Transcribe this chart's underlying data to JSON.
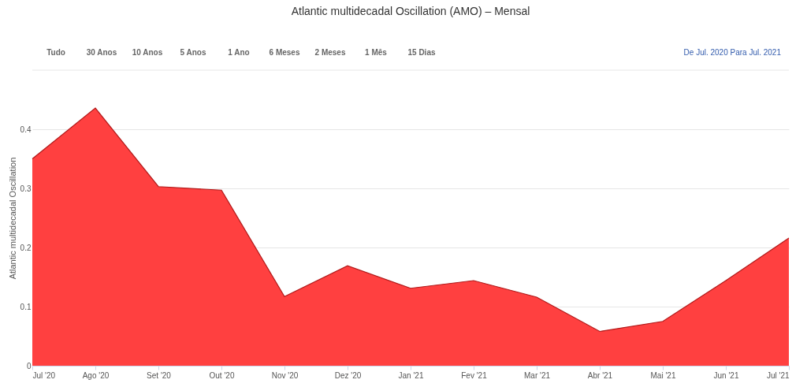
{
  "chart_data": {
    "type": "area",
    "title": "Atlantic multidecadal Oscillation (AMO) – Mensal",
    "ylabel": "Atlantic multidecadal Oscillation",
    "categories": [
      "Jul '20",
      "Ago '20",
      "Set '20",
      "Out '20",
      "Nov '20",
      "Dez '20",
      "Jan '21",
      "Fev '21",
      "Mar '21",
      "Abr '21",
      "Mai '21",
      "Jun '21",
      "Jul '21"
    ],
    "series": [
      {
        "color": "#ff4040",
        "values": [
          0.35,
          0.436,
          0.303,
          0.297,
          0.117,
          0.169,
          0.131,
          0.144,
          0.116,
          0.058,
          0.075,
          0.144,
          0.216
        ]
      }
    ],
    "ylim": [
      0,
      0.5
    ],
    "yticks": [
      0,
      0.1,
      0.2,
      0.3,
      0.4
    ],
    "grid": "y",
    "annotations": [
      "Tudo",
      "30 Anos",
      "10 Anos",
      "5 Anos",
      "1 Ano",
      "6 Meses",
      "2 Meses",
      "1 Mês",
      "15 Dias",
      "De Jul. 2020 Para Jul. 2021"
    ]
  }
}
